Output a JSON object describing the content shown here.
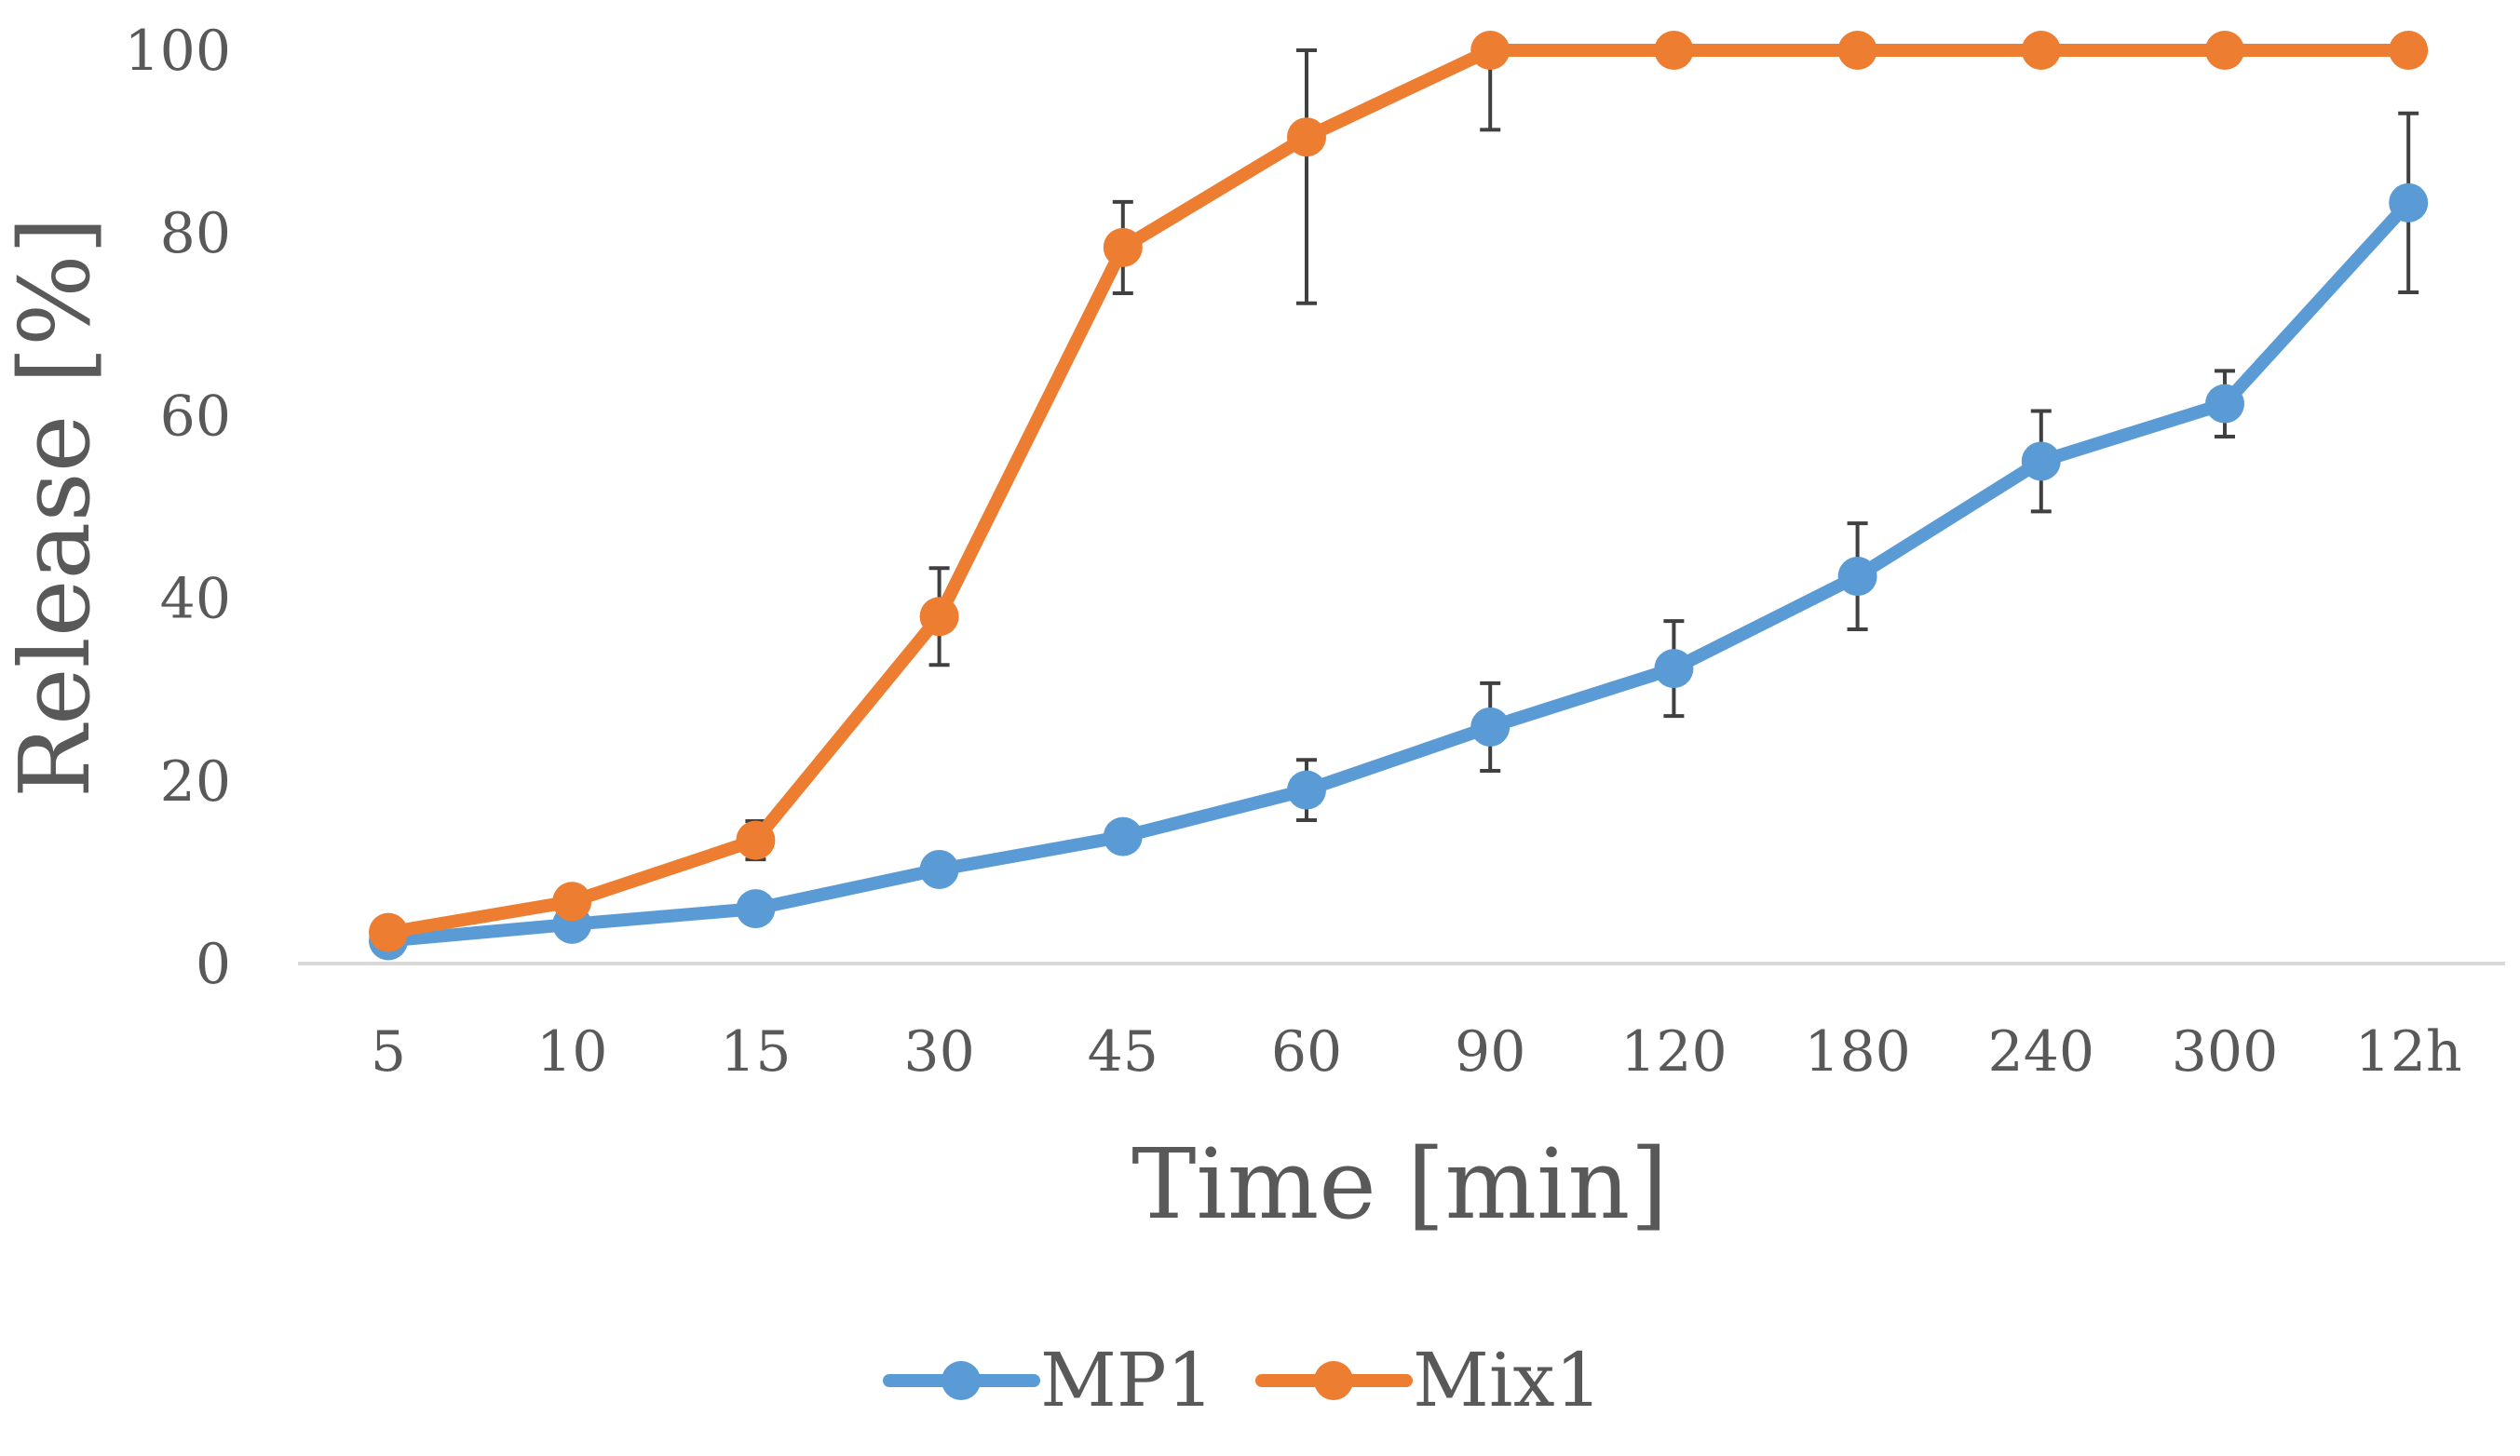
{
  "chart_data": {
    "type": "line",
    "title": "",
    "xlabel": "Time [min]",
    "ylabel": "Release [%]",
    "ylim": [
      0,
      100
    ],
    "yticks": [
      0,
      20,
      40,
      60,
      80,
      100
    ],
    "grid": false,
    "legend_position": "bottom",
    "categories": [
      "5",
      "10",
      "15",
      "30",
      "45",
      "60",
      "90",
      "120",
      "180",
      "240",
      "300",
      "12h"
    ],
    "series": [
      {
        "name": "MP1",
        "color": "#5B9BD5",
        "values": [
          2.5,
          4.3,
          6.0,
          10.3,
          13.9,
          19.0,
          25.9,
          32.3,
          42.4,
          55.0,
          61.3,
          83.3
        ],
        "errors": [
          0.6,
          0.8,
          0.8,
          0.8,
          1.3,
          3.3,
          4.8,
          5.2,
          5.8,
          5.5,
          3.6,
          9.8
        ]
      },
      {
        "name": "Mix1",
        "color": "#ED7D31",
        "values": [
          3.4,
          6.8,
          13.5,
          38.0,
          78.4,
          90.5,
          100,
          100,
          100,
          100,
          100,
          100
        ],
        "errors": [
          0.6,
          1.4,
          2.1,
          5.3,
          5.0,
          18.2,
          8.7,
          0,
          0,
          0,
          0,
          0
        ]
      }
    ]
  }
}
